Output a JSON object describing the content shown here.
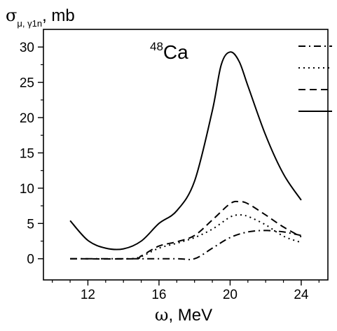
{
  "chart_data": {
    "type": "line",
    "annotation": {
      "mass_number": "48",
      "element": "Ca"
    },
    "xlabel": {
      "symbol": "ω",
      "rest": ", MeV"
    },
    "ylabel": {
      "symbol": "σ",
      "subscript": "μ, γ1n",
      "rest": ", mb"
    },
    "xlim": [
      9.5,
      25.5
    ],
    "ylim": [
      -3,
      32.5
    ],
    "x_ticks": [
      12,
      16,
      20,
      24
    ],
    "x_tick_labels": [
      "12",
      "16",
      "20",
      "24"
    ],
    "y_ticks": [
      0,
      5,
      10,
      15,
      20,
      25,
      30
    ],
    "y_tick_labels": [
      "0",
      "5",
      "10",
      "15",
      "20",
      "25",
      "30"
    ],
    "x_minor_step": 1,
    "y_minor_step": 2.5,
    "grid": false,
    "legend": {
      "position": "top-right",
      "entries": 4,
      "labels": []
    },
    "series": [
      {
        "style": "dashdot",
        "x": [
          11,
          15,
          17,
          18,
          19,
          20,
          21,
          22,
          23,
          24
        ],
        "y": [
          0,
          0,
          0,
          0,
          1.5,
          3,
          3.8,
          4.0,
          3.8,
          3.3
        ]
      },
      {
        "style": "dotted",
        "x": [
          14.5,
          15,
          16,
          17,
          18,
          19,
          20,
          20.5,
          21,
          22,
          23,
          24
        ],
        "y": [
          0,
          0.3,
          1.5,
          2.2,
          3.0,
          4.2,
          5.9,
          6.2,
          6.0,
          4.8,
          3.2,
          2.3
        ]
      },
      {
        "style": "dashed",
        "x": [
          11,
          14.5,
          15,
          16,
          17,
          18,
          19,
          20,
          20.5,
          21,
          22,
          23,
          24
        ],
        "y": [
          0,
          0,
          0.4,
          1.8,
          2.4,
          3.3,
          5.5,
          7.8,
          8.1,
          7.8,
          6.2,
          4.5,
          3.1
        ]
      },
      {
        "style": "solid",
        "x": [
          11,
          12,
          13,
          14,
          15,
          16,
          17,
          18,
          19,
          19.5,
          20,
          20.5,
          21,
          22,
          23,
          24
        ],
        "y": [
          5.4,
          2.6,
          1.5,
          1.4,
          2.5,
          5.0,
          6.8,
          11.0,
          21.0,
          27.5,
          29.3,
          28.0,
          24.5,
          17.5,
          12.0,
          8.3
        ]
      }
    ]
  }
}
